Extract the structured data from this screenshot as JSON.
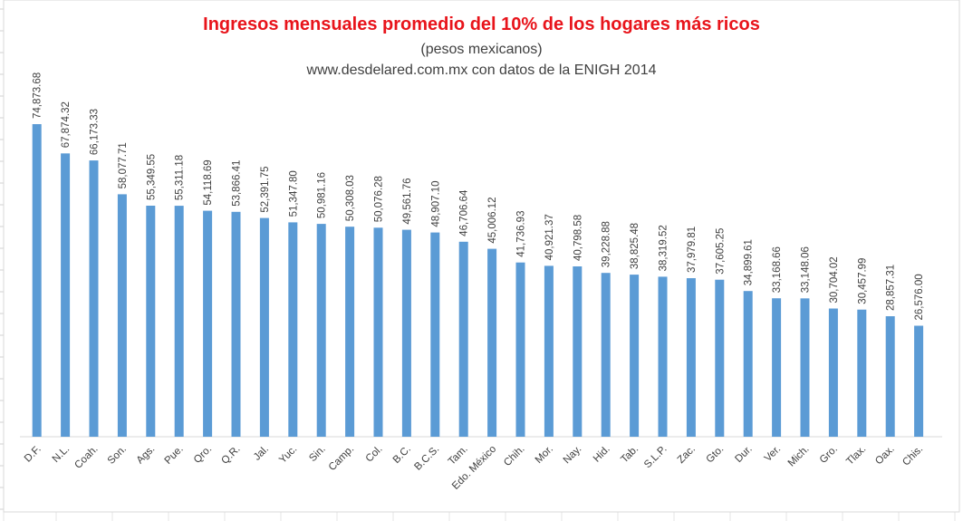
{
  "chart_data": {
    "type": "bar",
    "title": "Ingresos mensuales promedio del 10% de los hogares más ricos",
    "subtitle": "(pesos mexicanos)",
    "source": "www.desdelared.com.mx con datos de la ENIGH 2014",
    "xlabel": "",
    "ylabel": "",
    "ylim": [
      0,
      80000
    ],
    "grid": false,
    "legend": "none",
    "bar_color": "#5b9bd5",
    "title_color": "#e8141b",
    "categories": [
      "D.F.",
      "N.L.",
      "Coah.",
      "Son.",
      "Ags.",
      "Pue.",
      "Qro.",
      "Q.R.",
      "Jal.",
      "Yuc.",
      "Sin.",
      "Camp.",
      "Col.",
      "B.C.",
      "B.C.S.",
      "Tam.",
      "Edo. México",
      "Chih.",
      "Mor.",
      "Nay.",
      "Hid.",
      "Tab.",
      "S.L.P.",
      "Zac.",
      "Gto.",
      "Dur.",
      "Ver.",
      "Mich.",
      "Gro.",
      "Tlax.",
      "Oax.",
      "Chis."
    ],
    "values": [
      74873.68,
      67874.32,
      66173.33,
      58077.71,
      55349.55,
      55311.18,
      54118.69,
      53866.41,
      52391.75,
      51347.8,
      50981.16,
      50308.03,
      50076.28,
      49561.76,
      48907.1,
      46706.64,
      45006.12,
      41736.93,
      40921.37,
      40798.58,
      39228.88,
      38825.48,
      38319.52,
      37979.81,
      37605.25,
      34899.61,
      33168.66,
      33148.06,
      30704.02,
      30457.99,
      28857.31,
      26576.0
    ],
    "data_labels": [
      "74,873.68",
      "67,874.32",
      "66,173.33",
      "58,077.71",
      "55,349.55",
      "55,311.18",
      "54,118.69",
      "53,866.41",
      "52,391.75",
      "51,347.80",
      "50,981.16",
      "50,308.03",
      "50,076.28",
      "49,561.76",
      "48,907.10",
      "46,706.64",
      "45,006.12",
      "41,736.93",
      "40,921.37",
      "40,798.58",
      "39,228.88",
      "38,825.48",
      "38,319.52",
      "37,979.81",
      "37,605.25",
      "34,899.61",
      "33,168.66",
      "33,148.06",
      "30,704.02",
      "30,457.99",
      "28,857.31",
      "26,576.00"
    ]
  }
}
